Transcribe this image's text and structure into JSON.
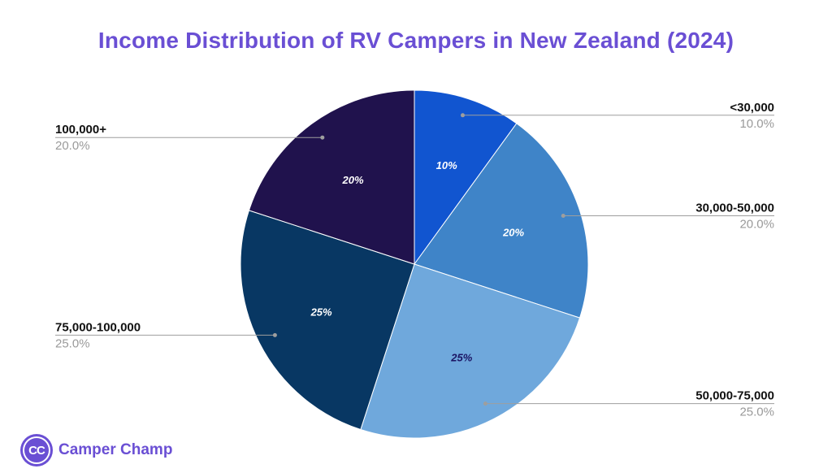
{
  "chart_data": {
    "type": "pie",
    "title": "Income Distribution of RV Campers in New Zealand (2024)",
    "slices": [
      {
        "label": "<30,000",
        "value": 10,
        "inner_label": "10%",
        "legend_value": "10.0%",
        "color": "#1155d0",
        "inner_text_color": "#ffffff",
        "side": "right"
      },
      {
        "label": "30,000-50,000",
        "value": 20,
        "inner_label": "20%",
        "legend_value": "20.0%",
        "color": "#3f84c8",
        "inner_text_color": "#ffffff",
        "side": "right"
      },
      {
        "label": "50,000-75,000",
        "value": 25,
        "inner_label": "25%",
        "legend_value": "25.0%",
        "color": "#6fa8dc",
        "inner_text_color": "#1b1464",
        "side": "right"
      },
      {
        "label": "75,000-100,000",
        "value": 25,
        "inner_label": "25%",
        "legend_value": "25.0%",
        "color": "#083763",
        "inner_text_color": "#ffffff",
        "side": "left"
      },
      {
        "label": "100,000+",
        "value": 20,
        "inner_label": "20%",
        "legend_value": "20.0%",
        "color": "#20124d",
        "inner_text_color": "#ffffff",
        "side": "left"
      }
    ]
  },
  "brand": {
    "logo_text": "CC",
    "name": "Camper Champ",
    "color": "#6a4fd4"
  },
  "colors": {
    "title": "#6a4fd4",
    "leader_line": "#9e9e9e",
    "legend_value": "#9a9a9a"
  }
}
